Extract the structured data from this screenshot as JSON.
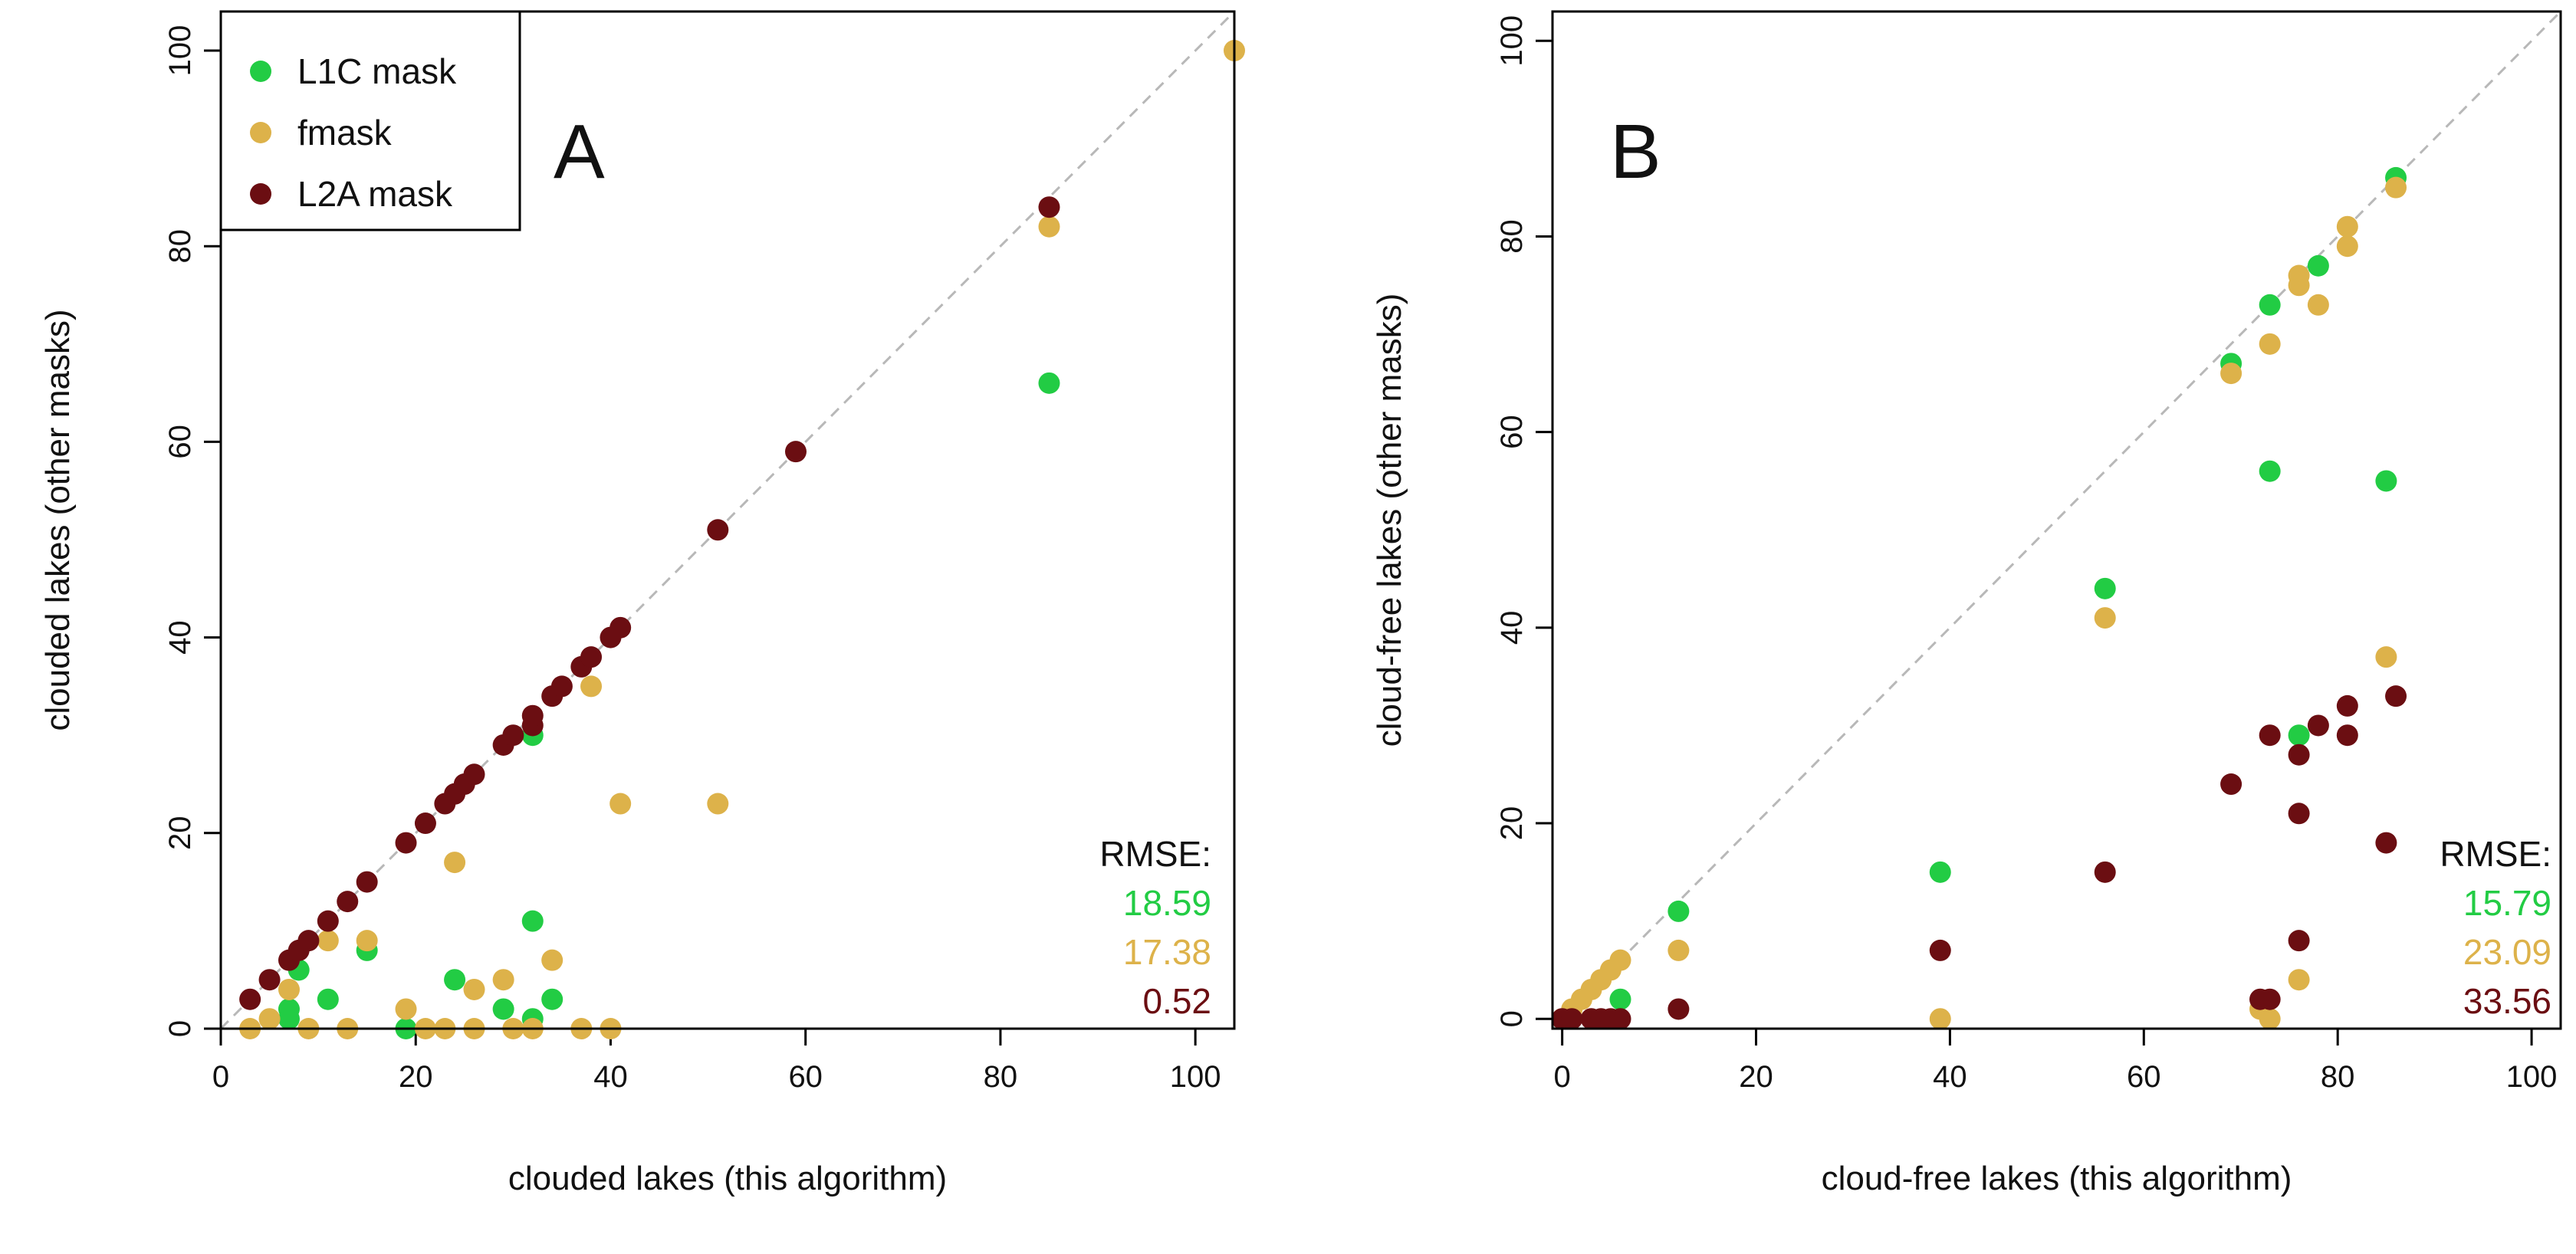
{
  "chart_data": [
    {
      "type": "scatter",
      "panel_label": "A",
      "xlabel": "clouded lakes (this algorithm)",
      "ylabel": "clouded lakes (other masks)",
      "xlim": [
        0,
        104
      ],
      "ylim": [
        0,
        104
      ],
      "xticks": [
        0,
        20,
        40,
        60,
        80,
        100
      ],
      "yticks": [
        0,
        20,
        40,
        60,
        80,
        100
      ],
      "reference_line": "y = x (dashed grey)",
      "legend": {
        "placement": "top-left",
        "entries": [
          "L1C mask",
          "fmask",
          "L2A mask"
        ]
      },
      "rmse_label": "RMSE:",
      "series": [
        {
          "name": "L1C mask",
          "color": "#22cc44",
          "rmse": "18.59",
          "points": [
            [
              7,
              1
            ],
            [
              7,
              2
            ],
            [
              8,
              6
            ],
            [
              11,
              3
            ],
            [
              15,
              8
            ],
            [
              19,
              0
            ],
            [
              24,
              5
            ],
            [
              29,
              2
            ],
            [
              32,
              11
            ],
            [
              32,
              30
            ],
            [
              32,
              1
            ],
            [
              34,
              3
            ],
            [
              85,
              66
            ]
          ]
        },
        {
          "name": "fmask",
          "color": "#ddb24a",
          "rmse": "17.38",
          "points": [
            [
              3,
              0
            ],
            [
              5,
              1
            ],
            [
              7,
              4
            ],
            [
              9,
              0
            ],
            [
              11,
              9
            ],
            [
              13,
              0
            ],
            [
              15,
              9
            ],
            [
              19,
              2
            ],
            [
              21,
              0
            ],
            [
              23,
              0
            ],
            [
              24,
              17
            ],
            [
              26,
              4
            ],
            [
              26,
              0
            ],
            [
              29,
              5
            ],
            [
              30,
              0
            ],
            [
              32,
              0
            ],
            [
              34,
              7
            ],
            [
              37,
              0
            ],
            [
              38,
              35
            ],
            [
              40,
              0
            ],
            [
              41,
              23
            ],
            [
              51,
              23
            ],
            [
              85,
              82
            ],
            [
              104,
              100
            ]
          ]
        },
        {
          "name": "L2A mask",
          "color": "#6b0e12",
          "rmse": "0.52",
          "points": [
            [
              3,
              3
            ],
            [
              5,
              5
            ],
            [
              7,
              7
            ],
            [
              8,
              8
            ],
            [
              9,
              9
            ],
            [
              11,
              11
            ],
            [
              13,
              13
            ],
            [
              15,
              15
            ],
            [
              19,
              19
            ],
            [
              21,
              21
            ],
            [
              23,
              23
            ],
            [
              24,
              24
            ],
            [
              25,
              25
            ],
            [
              26,
              26
            ],
            [
              29,
              29
            ],
            [
              30,
              30
            ],
            [
              32,
              31
            ],
            [
              32,
              32
            ],
            [
              34,
              34
            ],
            [
              35,
              35
            ],
            [
              37,
              37
            ],
            [
              38,
              38
            ],
            [
              40,
              40
            ],
            [
              41,
              41
            ],
            [
              51,
              51
            ],
            [
              59,
              59
            ],
            [
              85,
              84
            ]
          ]
        }
      ]
    },
    {
      "type": "scatter",
      "panel_label": "B",
      "xlabel": "cloud-free lakes (this algorithm)",
      "ylabel": "cloud-free lakes (other masks)",
      "xlim": [
        -1,
        103
      ],
      "ylim": [
        -1,
        103
      ],
      "xticks": [
        0,
        20,
        40,
        60,
        80,
        100
      ],
      "yticks": [
        0,
        20,
        40,
        60,
        80,
        100
      ],
      "reference_line": "y = x (dashed grey)",
      "rmse_label": "RMSE:",
      "series": [
        {
          "name": "L1C mask",
          "color": "#22cc44",
          "rmse": "15.79",
          "points": [
            [
              6,
              2
            ],
            [
              12,
              11
            ],
            [
              39,
              15
            ],
            [
              56,
              44
            ],
            [
              69,
              67
            ],
            [
              73,
              73
            ],
            [
              73,
              56
            ],
            [
              76,
              29
            ],
            [
              78,
              77
            ],
            [
              85,
              55
            ],
            [
              86,
              86
            ]
          ]
        },
        {
          "name": "fmask",
          "color": "#ddb24a",
          "rmse": "23.09",
          "points": [
            [
              0,
              0
            ],
            [
              1,
              1
            ],
            [
              2,
              2
            ],
            [
              3,
              3
            ],
            [
              4,
              4
            ],
            [
              5,
              5
            ],
            [
              6,
              6
            ],
            [
              12,
              7
            ],
            [
              39,
              0
            ],
            [
              56,
              41
            ],
            [
              69,
              66
            ],
            [
              72,
              1
            ],
            [
              73,
              69
            ],
            [
              73,
              0
            ],
            [
              76,
              75
            ],
            [
              76,
              76
            ],
            [
              76,
              4
            ],
            [
              78,
              73
            ],
            [
              81,
              79
            ],
            [
              81,
              81
            ],
            [
              85,
              37
            ],
            [
              86,
              85
            ]
          ]
        },
        {
          "name": "L2A mask",
          "color": "#6b0e12",
          "rmse": "33.56",
          "points": [
            [
              0,
              0
            ],
            [
              1,
              0
            ],
            [
              3,
              0
            ],
            [
              4,
              0
            ],
            [
              5,
              0
            ],
            [
              6,
              0
            ],
            [
              12,
              1
            ],
            [
              39,
              7
            ],
            [
              56,
              15
            ],
            [
              69,
              24
            ],
            [
              72,
              2
            ],
            [
              73,
              2
            ],
            [
              73,
              29
            ],
            [
              76,
              27
            ],
            [
              76,
              21
            ],
            [
              76,
              8
            ],
            [
              78,
              30
            ],
            [
              81,
              32
            ],
            [
              81,
              29
            ],
            [
              85,
              18
            ],
            [
              86,
              33
            ]
          ]
        }
      ]
    }
  ]
}
